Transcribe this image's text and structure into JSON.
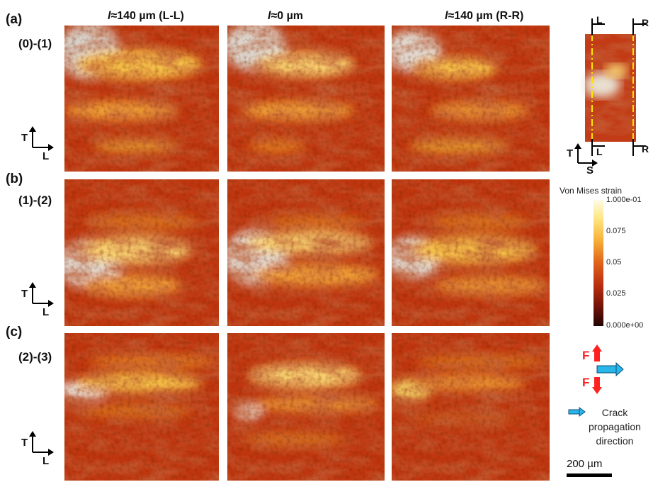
{
  "panels": [
    {
      "label": "(a)",
      "step": "(0)-(1)"
    },
    {
      "label": "(b)",
      "step": "(1)-(2)"
    },
    {
      "label": "(c)",
      "step": "(2)-(3)"
    }
  ],
  "columns": [
    {
      "var": "l",
      "rest": "≈140 µm (L-L)"
    },
    {
      "var": "l",
      "rest": "≈0 µm"
    },
    {
      "var": "l",
      "rest": "≈140 µm (R-R)"
    }
  ],
  "axes": {
    "vertical": "T",
    "horizontal": "L"
  },
  "inset": {
    "left_mark": "L",
    "right_mark": "R",
    "axis_vertical": "T",
    "axis_horizontal": "S"
  },
  "colorbar": {
    "title": "Von Mises strain",
    "ticks": [
      "1.000e-01",
      "0.075",
      "0.05",
      "0.025",
      "0.000e+00"
    ],
    "colors": [
      "#fffbe8",
      "#ffe680",
      "#f7b037",
      "#e0621a",
      "#b82e10",
      "#701207",
      "#200402"
    ]
  },
  "force_label": "F",
  "crack_legend": "Crack propagation direction",
  "crack_legend_lines": [
    "Crack",
    "propagation",
    "direction"
  ],
  "scale_bar": "200 µm",
  "colors": {
    "force": "#ff2020",
    "crack_arrow": "#29b6e8"
  }
}
